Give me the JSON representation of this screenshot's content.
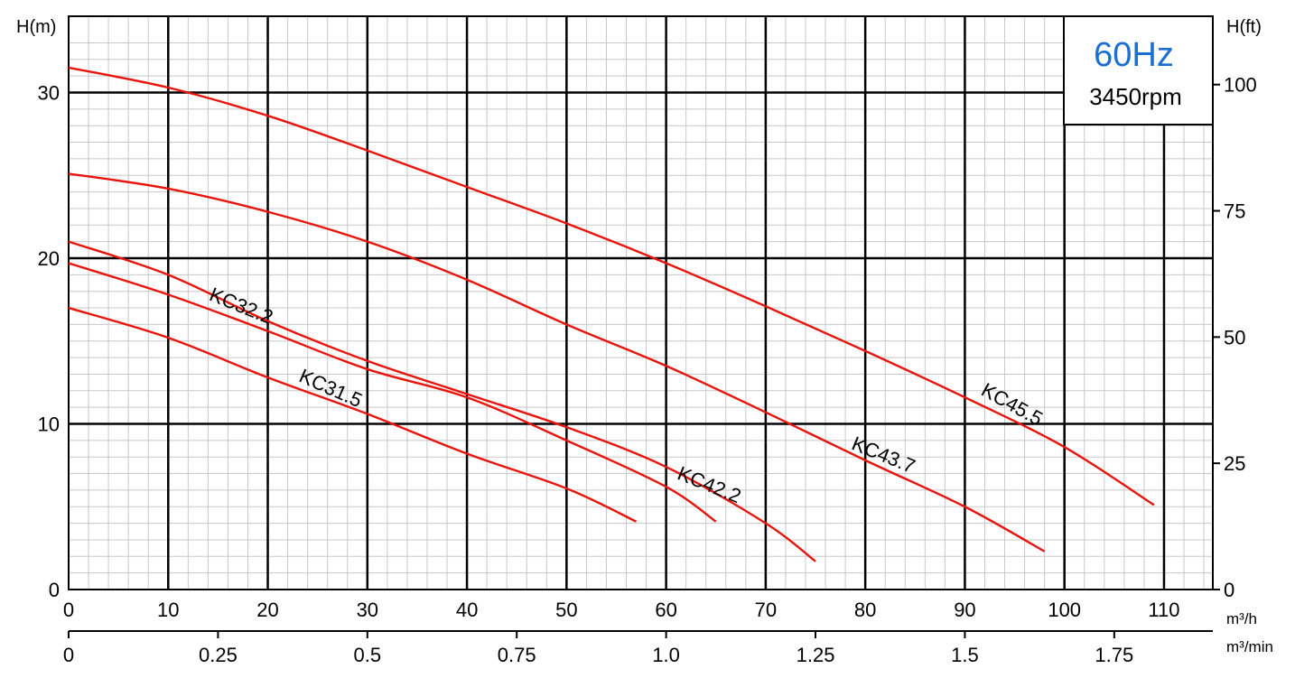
{
  "chart_data": {
    "type": "line",
    "y_left_label": "H(m)",
    "y_right_label": "H(ft)",
    "x_primary_unit": "m³/h",
    "x_secondary_unit": "m³/min",
    "x_range": [
      0,
      115
    ],
    "y_range": [
      0,
      33
    ],
    "x_ticks": [
      "0",
      "10",
      "20",
      "30",
      "40",
      "50",
      "60",
      "70",
      "80",
      "90",
      "100",
      "110"
    ],
    "x_secondary_ticks": [
      "0",
      "0.25",
      "0.5",
      "0.75",
      "1.0",
      "1.25",
      "1.5",
      "1.75"
    ],
    "y_left_ticks": [
      "0",
      "10",
      "20",
      "30"
    ],
    "y_right_ticks": [
      "0",
      "25",
      "50",
      "75",
      "100"
    ],
    "frequency_label": "60Hz",
    "speed_label": "3450rpm",
    "grid": true,
    "series": [
      {
        "name": "KC31.5",
        "points": [
          [
            0,
            17.0
          ],
          [
            10,
            15.2
          ],
          [
            20,
            12.8
          ],
          [
            30,
            10.6
          ],
          [
            40,
            8.2
          ],
          [
            50,
            6.1
          ],
          [
            57,
            4.1
          ]
        ]
      },
      {
        "name": "KC32.2",
        "points": [
          [
            0,
            19.7
          ],
          [
            10,
            17.8
          ],
          [
            20,
            15.6
          ],
          [
            30,
            13.3
          ],
          [
            40,
            11.6
          ],
          [
            50,
            9.0
          ],
          [
            60,
            6.2
          ],
          [
            65,
            4.1
          ]
        ]
      },
      {
        "name": "KC42.2",
        "points": [
          [
            0,
            21.0
          ],
          [
            10,
            19.0
          ],
          [
            20,
            16.2
          ],
          [
            30,
            13.8
          ],
          [
            40,
            11.8
          ],
          [
            50,
            9.8
          ],
          [
            60,
            7.4
          ],
          [
            70,
            4.0
          ],
          [
            75,
            1.7
          ]
        ]
      },
      {
        "name": "KC43.7",
        "points": [
          [
            0,
            25.1
          ],
          [
            10,
            24.2
          ],
          [
            20,
            22.8
          ],
          [
            30,
            21.0
          ],
          [
            40,
            18.7
          ],
          [
            50,
            16.0
          ],
          [
            60,
            13.5
          ],
          [
            70,
            10.7
          ],
          [
            80,
            7.8
          ],
          [
            90,
            5.0
          ],
          [
            98,
            2.3
          ]
        ]
      },
      {
        "name": "KC45.5",
        "points": [
          [
            0,
            31.5
          ],
          [
            10,
            30.3
          ],
          [
            20,
            28.6
          ],
          [
            30,
            26.5
          ],
          [
            40,
            24.3
          ],
          [
            50,
            22.1
          ],
          [
            60,
            19.7
          ],
          [
            70,
            17.1
          ],
          [
            80,
            14.4
          ],
          [
            90,
            11.6
          ],
          [
            100,
            8.6
          ],
          [
            109,
            5.1
          ]
        ]
      }
    ]
  }
}
